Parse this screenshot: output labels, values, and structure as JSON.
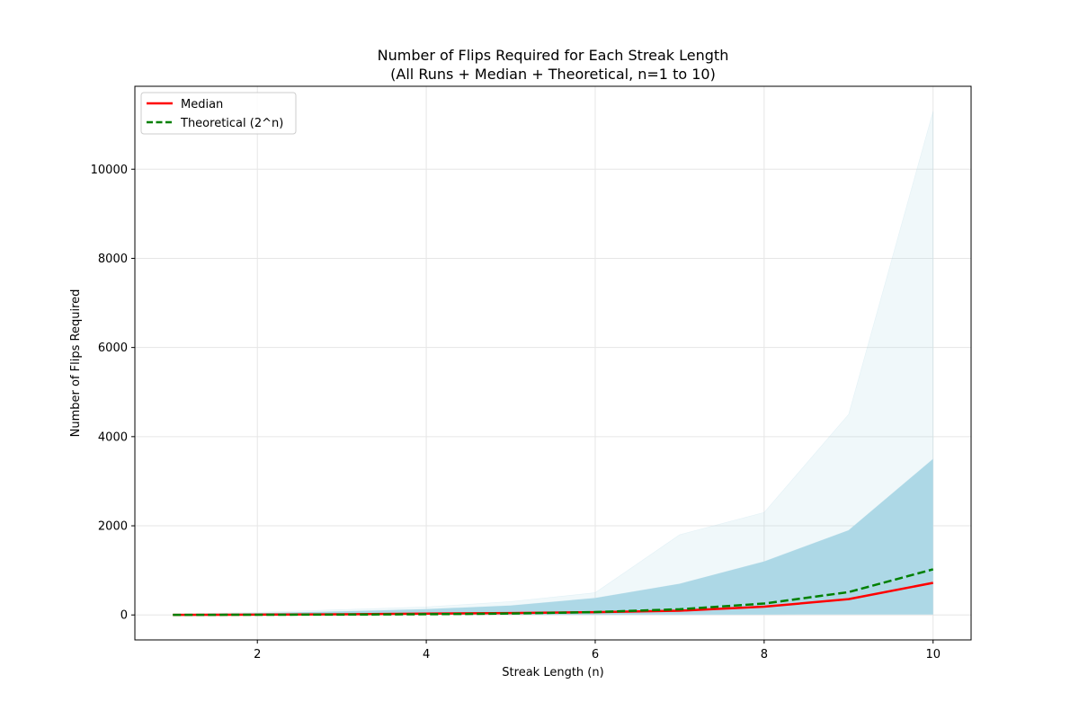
{
  "chart_data": {
    "type": "line",
    "title": "Number of Flips Required for Each Streak Length",
    "subtitle": "(All Runs + Median + Theoretical, n=1 to 10)",
    "xlabel": "Streak Length (n)",
    "ylabel": "Number of Flips Required",
    "x": [
      1,
      2,
      3,
      4,
      5,
      6,
      7,
      8,
      9,
      10
    ],
    "xlim": [
      0.55,
      10.45
    ],
    "ylim": [
      -560,
      11860
    ],
    "x_ticks": [
      2,
      4,
      6,
      8,
      10
    ],
    "x_tick_labels": [
      "2",
      "4",
      "6",
      "8",
      "10"
    ],
    "y_ticks": [
      0,
      2000,
      4000,
      6000,
      8000,
      10000
    ],
    "y_tick_labels": [
      "0",
      "2000",
      "4000",
      "6000",
      "8000",
      "10000"
    ],
    "grid": true,
    "legend_position": "upper-left",
    "series": [
      {
        "name": "Median",
        "color": "#ff0000",
        "style": "solid",
        "values": [
          1,
          6,
          14,
          30,
          43,
          62,
          95,
          185,
          355,
          720
        ]
      },
      {
        "name": "Theoretical (2^n)",
        "color": "#008000",
        "style": "dashed",
        "values": [
          2,
          4,
          8,
          16,
          32,
          64,
          128,
          256,
          512,
          1024
        ]
      }
    ],
    "all_runs_band": {
      "color": "#add8e6",
      "min": [
        1,
        2,
        3,
        4,
        5,
        6,
        7,
        8,
        9,
        10
      ],
      "dense_max": [
        15,
        40,
        80,
        130,
        210,
        380,
        700,
        1200,
        1900,
        3500
      ],
      "outlier_max": [
        20,
        60,
        120,
        180,
        300,
        500,
        1800,
        2300,
        4500,
        11300
      ]
    }
  }
}
